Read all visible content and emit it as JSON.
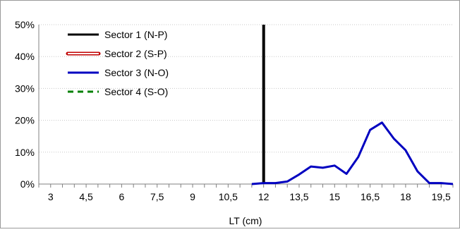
{
  "chart_data": {
    "type": "line",
    "title": "",
    "xlabel": "LT (cm)",
    "ylabel": "",
    "x_tick_labels": [
      "3",
      "4,5",
      "6",
      "7,5",
      "9",
      "10,5",
      "12",
      "13,5",
      "15",
      "16,5",
      "18",
      "19,5"
    ],
    "x_tick_values": [
      3,
      4.5,
      6,
      7.5,
      9,
      10.5,
      12,
      13.5,
      15,
      16.5,
      18,
      19.5
    ],
    "xlim": [
      2.5,
      20
    ],
    "ylim": [
      0,
      0.5
    ],
    "y_ticks": [
      0,
      0.1,
      0.2,
      0.3,
      0.4,
      0.5
    ],
    "y_tick_labels": [
      "0%",
      "10%",
      "20%",
      "30%",
      "40%",
      "50%"
    ],
    "grid": true,
    "legend_position": "top-left",
    "series": [
      {
        "name": "Sector 1 (N-P)",
        "color": "#000000",
        "style": "solid",
        "points": [
          [
            12,
            0
          ],
          [
            12,
            0.5
          ]
        ]
      },
      {
        "name": "Sector 2 (S-P)",
        "color": "#c00000",
        "style": "double",
        "points": []
      },
      {
        "name": "Sector 3 (N-O)",
        "color": "#0000c0",
        "style": "solid",
        "points": [
          [
            11.5,
            0
          ],
          [
            12,
            0.003
          ],
          [
            12.5,
            0.003
          ],
          [
            13,
            0.008
          ],
          [
            13.5,
            0.03
          ],
          [
            14,
            0.055
          ],
          [
            14.5,
            0.051
          ],
          [
            15,
            0.058
          ],
          [
            15.5,
            0.032
          ],
          [
            16,
            0.085
          ],
          [
            16.5,
            0.17
          ],
          [
            17,
            0.193
          ],
          [
            17.5,
            0.143
          ],
          [
            18,
            0.106
          ],
          [
            18.5,
            0.04
          ],
          [
            19,
            0.003
          ],
          [
            19.5,
            0.003
          ],
          [
            20,
            0
          ]
        ]
      },
      {
        "name": "Sector 4 (S-O)",
        "color": "#008000",
        "style": "dashed",
        "points": []
      }
    ]
  }
}
